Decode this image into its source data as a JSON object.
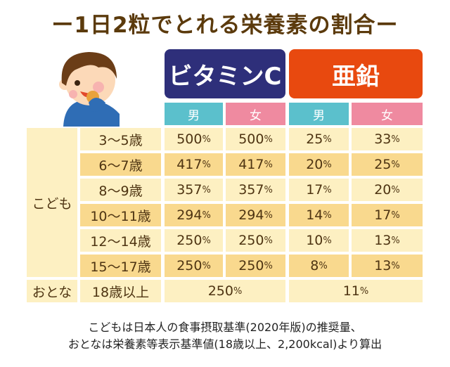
{
  "title": "ー1日2粒でとれる栄養素の割合ー",
  "headers": {
    "vitamin_c": {
      "label": "ビタミンC",
      "color": "#2e2f7a"
    },
    "zinc": {
      "label": "亜鉛",
      "color": "#e8490f"
    }
  },
  "sexes": [
    "男",
    "女",
    "男",
    "女"
  ],
  "sex_colors": {
    "male": "#5bc0cc",
    "female": "#ef8aa0"
  },
  "group_child": "こども",
  "group_adult": "おとな",
  "rows": [
    {
      "age": "3〜5歳",
      "values": [
        "500",
        "500",
        "25",
        "33"
      ]
    },
    {
      "age": "6〜7歳",
      "values": [
        "417",
        "417",
        "20",
        "25"
      ]
    },
    {
      "age": "8〜9歳",
      "values": [
        "357",
        "357",
        "17",
        "20"
      ]
    },
    {
      "age": "10〜11歳",
      "values": [
        "294",
        "294",
        "14",
        "17"
      ]
    },
    {
      "age": "12〜14歳",
      "values": [
        "250",
        "250",
        "10",
        "13"
      ]
    },
    {
      "age": "15〜17歳",
      "values": [
        "250",
        "250",
        "8",
        "13"
      ]
    }
  ],
  "adult": {
    "age": "18歳以上",
    "vitamin_c": "250",
    "zinc": "11"
  },
  "percent": "%",
  "footnote": [
    "こどもは日本人の食事摂取基準(2020年版)の推奨量、",
    "おとなは栄養素等表示基準値(18歳以上、2,200kcal)より算出"
  ]
}
